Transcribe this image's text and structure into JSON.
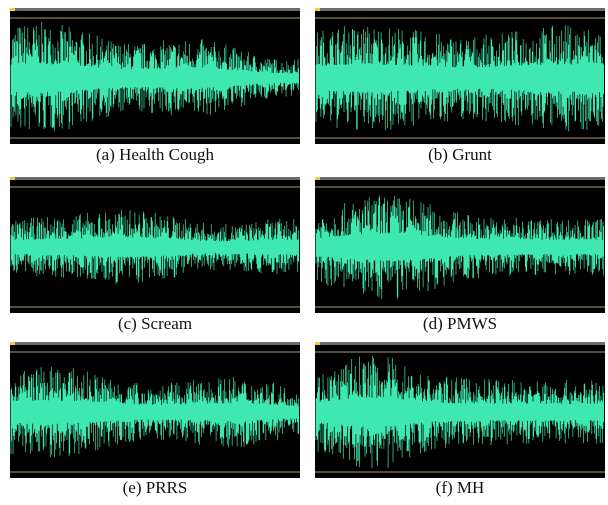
{
  "panels": [
    {
      "caption": "(a) Health Cough"
    },
    {
      "caption": "(b) Grunt"
    },
    {
      "caption": "(c) Scream"
    },
    {
      "caption": "(d) PMWS"
    },
    {
      "caption": "(e) PRRS"
    },
    {
      "caption": "(f) MH"
    }
  ]
}
